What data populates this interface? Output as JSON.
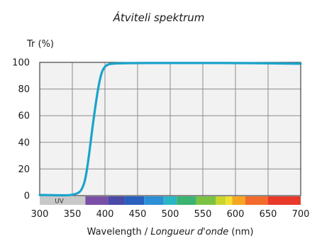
{
  "chart_data": {
    "type": "line",
    "title": "Átviteli spektrum",
    "ylabel": "Tr (%)",
    "xlabel_main": "Wavelength / ",
    "xlabel_italic": "Longueur d'onde",
    "xlabel_unit": " (nm)",
    "xlim": [
      300,
      700
    ],
    "ylim": [
      0,
      100
    ],
    "x_ticks": [
      "300",
      "350",
      "400",
      "450",
      "500",
      "550",
      "600",
      "650",
      "700"
    ],
    "y_ticks": [
      "0",
      "20",
      "40",
      "60",
      "80",
      "100"
    ],
    "grid": true,
    "series": [
      {
        "line_color": "#1aa3cc",
        "x": [
          300,
          320,
          340,
          350,
          360,
          365,
          370,
          375,
          380,
          385,
          390,
          395,
          400,
          405,
          410,
          420,
          450,
          500,
          550,
          600,
          650,
          700
        ],
        "y": [
          0.5,
          0.3,
          0.2,
          0.5,
          2,
          5,
          12,
          28,
          48,
          66,
          82,
          93,
          97,
          98.5,
          99,
          99.3,
          99.5,
          99.5,
          99.5,
          99.5,
          99.3,
          99
        ]
      }
    ],
    "spectrum_band": {
      "uv_label": "UV",
      "uv_color": "#c8c8c8",
      "segments": [
        {
          "from": 300,
          "to": 370,
          "color": "#c8c8c8"
        },
        {
          "from": 370,
          "to": 405,
          "color": "#7a4fa6"
        },
        {
          "from": 405,
          "to": 430,
          "color": "#4a4aa8"
        },
        {
          "from": 430,
          "to": 460,
          "color": "#2a5fbd"
        },
        {
          "from": 460,
          "to": 490,
          "color": "#2d8fd6"
        },
        {
          "from": 490,
          "to": 510,
          "color": "#2bb6c6"
        },
        {
          "from": 510,
          "to": 540,
          "color": "#3cb371"
        },
        {
          "from": 540,
          "to": 570,
          "color": "#7cc242"
        },
        {
          "from": 570,
          "to": 585,
          "color": "#c9d62c"
        },
        {
          "from": 585,
          "to": 595,
          "color": "#f1e12e"
        },
        {
          "from": 595,
          "to": 615,
          "color": "#f6a623"
        },
        {
          "from": 615,
          "to": 650,
          "color": "#f26b2c"
        },
        {
          "from": 650,
          "to": 700,
          "color": "#e8392a"
        }
      ]
    },
    "colors": {
      "plot_bg": "#f2f2f2",
      "grid": "#8c8c8c",
      "axis": "#444444"
    }
  }
}
